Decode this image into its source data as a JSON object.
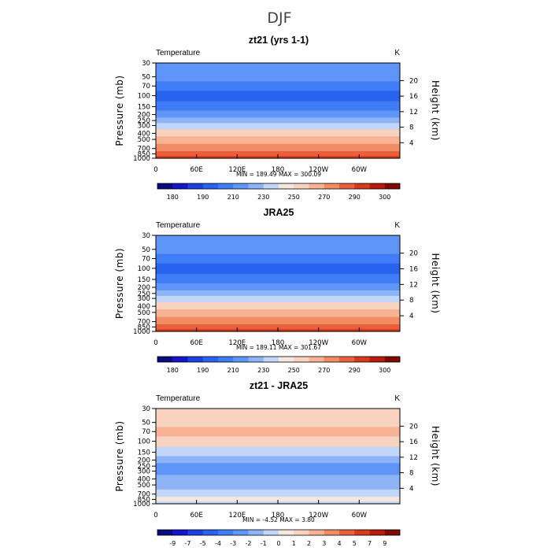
{
  "figure_title": "DJF",
  "chart_data": [
    {
      "type": "heatmap",
      "title": "zt21 (yrs 1-1)",
      "left_label": "Temperature",
      "unit_label": "K",
      "xlabel": "",
      "ylabel": "Pressure (mb)",
      "y2label": "Height (km)",
      "x_ticks": [
        "0",
        "60E",
        "120E",
        "180",
        "120W",
        "60W"
      ],
      "y_ticks": [
        "30",
        "50",
        "70",
        "100",
        "150",
        "200",
        "250",
        "300",
        "400",
        "500",
        "700",
        "850",
        "1000"
      ],
      "y2_ticks": [
        "20",
        "16",
        "12",
        "8",
        "4"
      ],
      "stats_text": "MIN = 189.49   MAX = 300.09",
      "min": 189.49,
      "max": 300.09,
      "colorbar": {
        "levels": [
          180,
          185,
          190,
          200,
          210,
          220,
          230,
          240,
          250,
          260,
          270,
          280,
          290,
          295,
          300
        ],
        "labels": [
          "180",
          "190",
          "210",
          "230",
          "250",
          "270",
          "290",
          "300"
        ],
        "colors": [
          "#0b0b80",
          "#1414c8",
          "#1c3fe0",
          "#2a62f0",
          "#3e7df5",
          "#5f95f6",
          "#8db4f7",
          "#c2d6f7",
          "#f4e7df",
          "#f8d3bf",
          "#f7b394",
          "#f28c63",
          "#e8603c",
          "#d63a1c",
          "#b81c0c",
          "#7e0a04"
        ]
      },
      "profile": [
        {
          "p": 30,
          "t": 214
        },
        {
          "p": 50,
          "t": 210
        },
        {
          "p": 70,
          "t": 204
        },
        {
          "p": 100,
          "t": 198
        },
        {
          "p": 150,
          "t": 207
        },
        {
          "p": 200,
          "t": 216
        },
        {
          "p": 250,
          "t": 226
        },
        {
          "p": 300,
          "t": 235
        },
        {
          "p": 400,
          "t": 250
        },
        {
          "p": 500,
          "t": 260
        },
        {
          "p": 700,
          "t": 276
        },
        {
          "p": 850,
          "t": 285
        },
        {
          "p": 1000,
          "t": 292
        }
      ]
    },
    {
      "type": "heatmap",
      "title": "JRA25",
      "left_label": "Temperature",
      "unit_label": "K",
      "xlabel": "",
      "ylabel": "Pressure (mb)",
      "y2label": "Height (km)",
      "x_ticks": [
        "0",
        "60E",
        "120E",
        "180",
        "120W",
        "60W"
      ],
      "y_ticks": [
        "30",
        "50",
        "70",
        "100",
        "150",
        "200",
        "250",
        "300",
        "400",
        "500",
        "700",
        "850",
        "1000"
      ],
      "y2_ticks": [
        "20",
        "16",
        "12",
        "8",
        "4"
      ],
      "stats_text": "MIN = 189.11   MAX = 301.67",
      "min": 189.11,
      "max": 301.67,
      "colorbar": {
        "levels": [
          180,
          185,
          190,
          200,
          210,
          220,
          230,
          240,
          250,
          260,
          270,
          280,
          290,
          295,
          300
        ],
        "labels": [
          "180",
          "190",
          "210",
          "230",
          "250",
          "270",
          "290",
          "300"
        ],
        "colors": [
          "#0b0b80",
          "#1414c8",
          "#1c3fe0",
          "#2a62f0",
          "#3e7df5",
          "#5f95f6",
          "#8db4f7",
          "#c2d6f7",
          "#f4e7df",
          "#f8d3bf",
          "#f7b394",
          "#f28c63",
          "#e8603c",
          "#d63a1c",
          "#b81c0c",
          "#7e0a04"
        ]
      },
      "profile": [
        {
          "p": 30,
          "t": 214
        },
        {
          "p": 50,
          "t": 210
        },
        {
          "p": 70,
          "t": 204
        },
        {
          "p": 100,
          "t": 198
        },
        {
          "p": 150,
          "t": 207
        },
        {
          "p": 200,
          "t": 216
        },
        {
          "p": 250,
          "t": 226
        },
        {
          "p": 300,
          "t": 235
        },
        {
          "p": 400,
          "t": 250
        },
        {
          "p": 500,
          "t": 260
        },
        {
          "p": 700,
          "t": 276
        },
        {
          "p": 850,
          "t": 285
        },
        {
          "p": 1000,
          "t": 292
        }
      ]
    },
    {
      "type": "heatmap",
      "title": "zt21 - JRA25",
      "left_label": "Temperature",
      "unit_label": "K",
      "xlabel": "",
      "ylabel": "Pressure (mb)",
      "y2label": "Height (km)",
      "x_ticks": [
        "0",
        "60E",
        "120E",
        "180",
        "120W",
        "60W"
      ],
      "y_ticks": [
        "30",
        "50",
        "70",
        "100",
        "150",
        "200",
        "250",
        "300",
        "400",
        "500",
        "700",
        "850",
        "1000"
      ],
      "y2_ticks": [
        "20",
        "16",
        "12",
        "8",
        "4"
      ],
      "stats_text": "MIN =   -4.52   MAX =    3.80",
      "min": -4.52,
      "max": 3.8,
      "colorbar": {
        "levels": [
          -9,
          -7,
          -5,
          -4,
          -3,
          -2,
          -1,
          0,
          1,
          2,
          3,
          4,
          5,
          7,
          9
        ],
        "labels": [
          "-9",
          "-7",
          "-5",
          "-4",
          "-3",
          "-2",
          "-1",
          "0",
          "1",
          "2",
          "3",
          "4",
          "5",
          "7",
          "9"
        ],
        "colors": [
          "#0b0b80",
          "#1414c8",
          "#1c3fe0",
          "#2a62f0",
          "#3e7df5",
          "#5f95f6",
          "#8db4f7",
          "#c2d6f7",
          "#f4e7df",
          "#f8d3bf",
          "#f7b394",
          "#f28c63",
          "#e8603c",
          "#d63a1c",
          "#b81c0c",
          "#7e0a04"
        ]
      },
      "profile": [
        {
          "p": 30,
          "t": 1.4
        },
        {
          "p": 50,
          "t": 1.6
        },
        {
          "p": 70,
          "t": 2.4
        },
        {
          "p": 100,
          "t": 1.0
        },
        {
          "p": 150,
          "t": -0.6
        },
        {
          "p": 200,
          "t": -1.4
        },
        {
          "p": 250,
          "t": -2.3
        },
        {
          "p": 300,
          "t": -2.6
        },
        {
          "p": 400,
          "t": -1.8
        },
        {
          "p": 500,
          "t": -1.2
        },
        {
          "p": 700,
          "t": -0.4
        },
        {
          "p": 850,
          "t": 0.6
        },
        {
          "p": 1000,
          "t": -0.3
        }
      ]
    }
  ]
}
